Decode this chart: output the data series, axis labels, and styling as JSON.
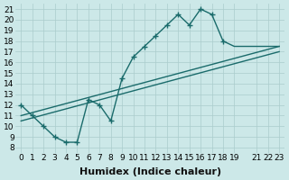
{
  "xlabel": "Humidex (Indice chaleur)",
  "background_color": "#cce8e8",
  "grid_color": "#aacccc",
  "line_color": "#1a6b6b",
  "xlim": [
    -0.5,
    23.5
  ],
  "ylim": [
    7.5,
    21.5
  ],
  "xticks": [
    0,
    1,
    2,
    3,
    4,
    5,
    6,
    7,
    8,
    9,
    10,
    11,
    12,
    13,
    14,
    15,
    16,
    17,
    18,
    19,
    21,
    22,
    23
  ],
  "yticks": [
    8,
    9,
    10,
    11,
    12,
    13,
    14,
    15,
    16,
    17,
    18,
    19,
    20,
    21
  ],
  "curve_x": [
    0,
    1,
    2,
    3,
    4,
    5,
    6,
    7,
    8,
    9,
    10,
    11,
    12,
    13,
    14,
    15,
    16,
    17,
    18,
    19,
    21,
    22,
    23
  ],
  "curve_y": [
    12,
    11,
    10,
    9,
    8.5,
    8.5,
    12.5,
    12,
    10.5,
    14.5,
    16.5,
    17.5,
    18.5,
    19.5,
    20.5,
    19.5,
    21.0,
    20.5,
    18,
    17.5,
    17.5,
    17.5,
    17.5
  ],
  "curve_has_markers": [
    true,
    true,
    true,
    true,
    true,
    true,
    true,
    true,
    true,
    true,
    true,
    true,
    true,
    true,
    true,
    true,
    true,
    true,
    true,
    false,
    false,
    false,
    false
  ],
  "line2_x": [
    0,
    23
  ],
  "line2_y": [
    11.0,
    17.5
  ],
  "line3_x": [
    0,
    23
  ],
  "line3_y": [
    10.5,
    17.0
  ],
  "marker": "+",
  "marker_size": 4,
  "linewidth": 1.0,
  "tick_fontsize": 6.5,
  "xlabel_fontsize": 8
}
